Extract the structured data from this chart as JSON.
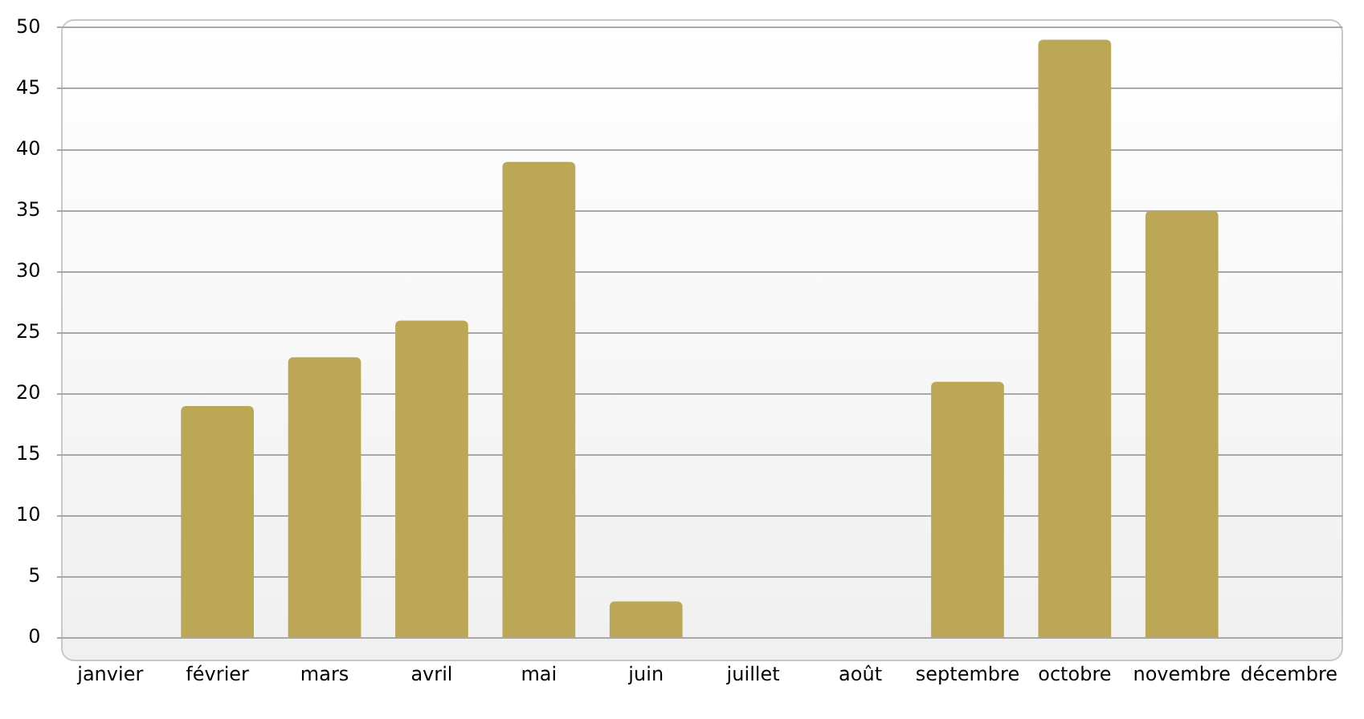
{
  "chart_data": {
    "type": "bar",
    "categories": [
      "janvier",
      "février",
      "mars",
      "avril",
      "mai",
      "juin",
      "juillet",
      "août",
      "septembre",
      "octobre",
      "novembre",
      "décembre"
    ],
    "values": [
      0,
      19,
      23,
      26,
      39,
      3,
      0,
      0,
      21,
      49,
      35,
      0
    ],
    "color": "#bba755",
    "ylim": [
      0,
      50
    ],
    "yticks": [
      0,
      5,
      10,
      15,
      20,
      25,
      30,
      35,
      40,
      45,
      50
    ],
    "grid": "y",
    "legend": false
  }
}
